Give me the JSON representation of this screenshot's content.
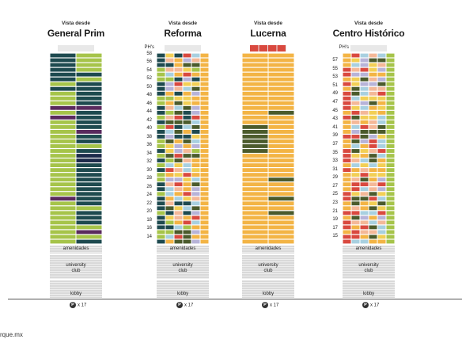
{
  "towers": [
    {
      "sup": "Vista desde",
      "name": "General Prim",
      "floor_labels": [],
      "phs_label": "",
      "amenities_label": "amenidades",
      "club_label_1": "university",
      "club_label_2": "club",
      "lobby_label": "lobby",
      "parking_label": "x 17",
      "parking_icon": "P"
    },
    {
      "sup": "Vista desde",
      "name": "Reforma",
      "floor_labels": [
        "58",
        "56",
        "54",
        "52",
        "50",
        "48",
        "46",
        "44",
        "42",
        "40",
        "38",
        "36",
        "34",
        "32",
        "30",
        "28",
        "26",
        "24",
        "22",
        "20",
        "18",
        "16",
        "14"
      ],
      "phs_label": "PH's",
      "amenities_label": "amenidades",
      "club_label_1": "university",
      "club_label_2": "club",
      "lobby_label": "lobby",
      "parking_label": "x 17",
      "parking_icon": "P"
    },
    {
      "sup": "Vista desde",
      "name": "Lucerna",
      "floor_labels": [],
      "phs_label": "",
      "amenities_label": "amenidades",
      "club_label_1": "university",
      "club_label_2": "club",
      "lobby_label": "lobby",
      "parking_label": "x 17",
      "parking_icon": "P"
    },
    {
      "sup": "Vista desde",
      "name": "Centro Histórico",
      "floor_labels": [
        "57",
        "55",
        "53",
        "51",
        "49",
        "47",
        "45",
        "43",
        "41",
        "39",
        "37",
        "35",
        "33",
        "31",
        "29",
        "27",
        "25",
        "23",
        "21",
        "19",
        "17",
        "15"
      ],
      "phs_label": "PH's",
      "amenities_label": "amenidades",
      "club_label_1": "university",
      "club_label_2": "club",
      "lobby_label": "lobby",
      "parking_label": "x 17",
      "parking_icon": "P"
    }
  ],
  "credit": "rque.mx",
  "palette": {
    "green": "#a6c44a",
    "teal": "#1e4a4f",
    "navy": "#1c2a4a",
    "orange": "#f3b445",
    "sky": "#a8d0e0",
    "peach": "#f4b898",
    "lavender": "#b7b3d8",
    "red": "#d9493f",
    "yellow": "#f2cf55",
    "olive": "#4b5b2c",
    "purple": "#5a2a5e",
    "gray": "#d9d9d9",
    "lightgray": "#e8e8e8"
  }
}
